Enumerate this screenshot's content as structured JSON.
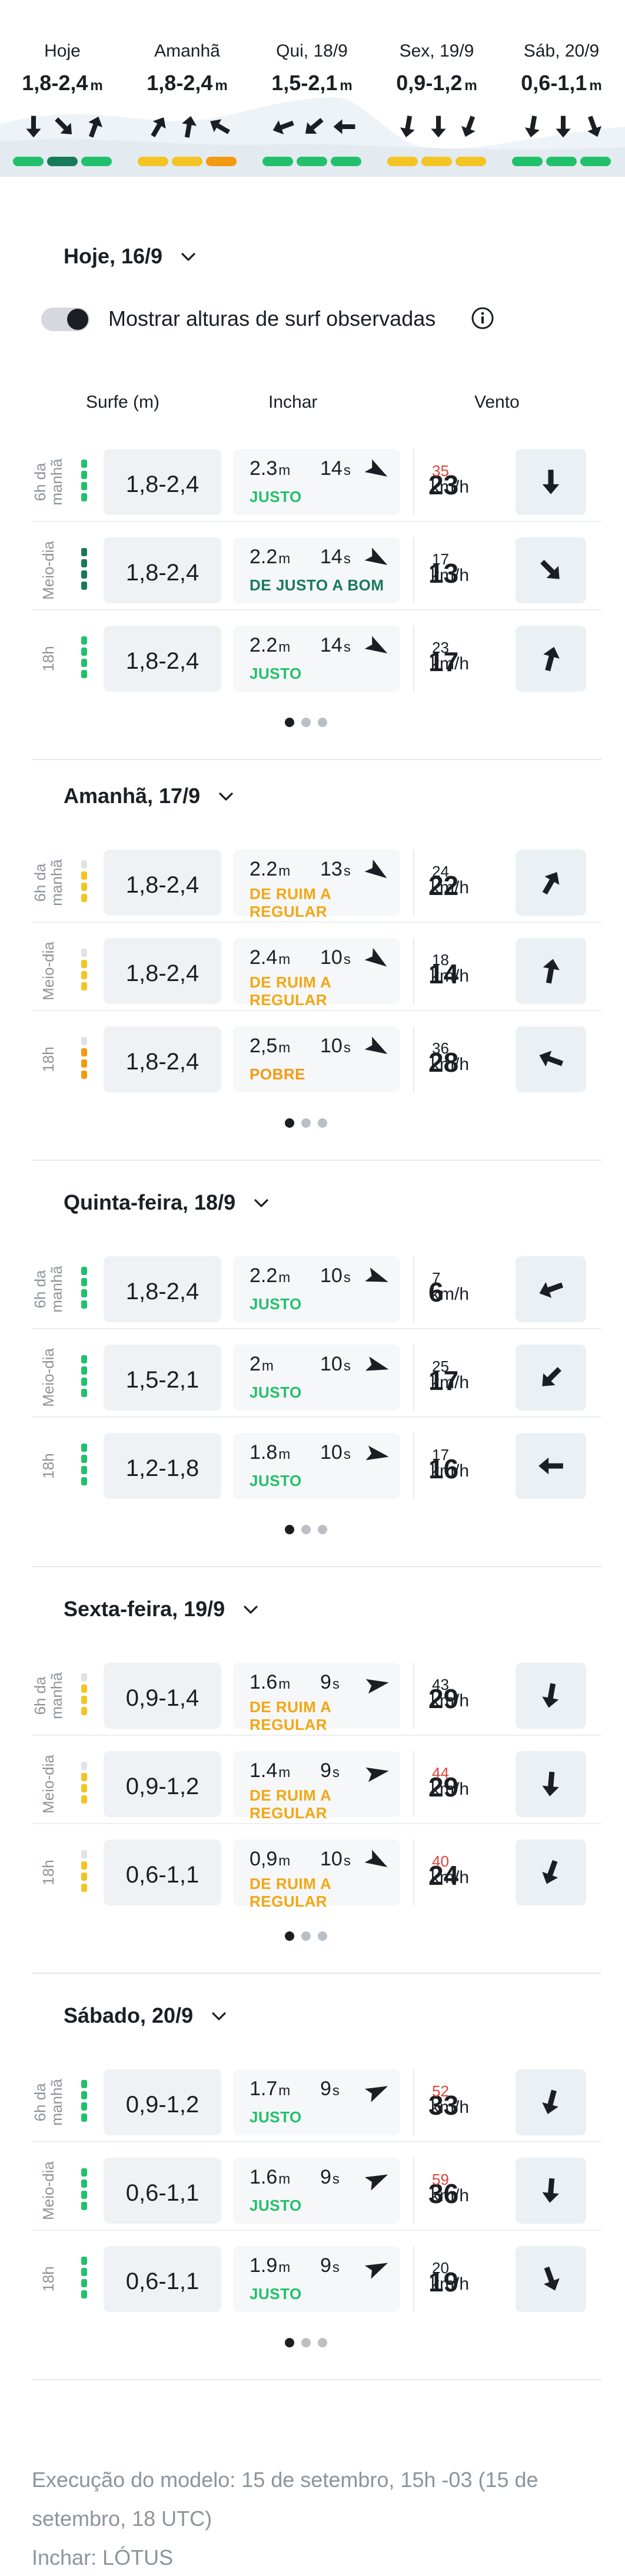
{
  "forecast_strip": [
    {
      "day": "Hoje",
      "height": "1,8-2,4",
      "unit": "m",
      "arrows": [
        180,
        135,
        20
      ],
      "bars": [
        "#21c16b",
        "#177a58",
        "#21c16b"
      ]
    },
    {
      "day": "Amanhã",
      "height": "1,8-2,4",
      "unit": "m",
      "arrows": [
        30,
        10,
        300
      ],
      "bars": [
        "#f3c423",
        "#f3c423",
        "#f39a12"
      ]
    },
    {
      "day": "Qui, 18/9",
      "height": "1,5-2,1",
      "unit": "m",
      "arrows": [
        250,
        230,
        270
      ],
      "bars": [
        "#21c16b",
        "#21c16b",
        "#21c16b"
      ]
    },
    {
      "day": "Sex, 19/9",
      "height": "0,9-1,2",
      "unit": "m",
      "arrows": [
        190,
        180,
        200
      ],
      "bars": [
        "#f3c423",
        "#f3c423",
        "#f3c423"
      ]
    },
    {
      "day": "Sáb, 20/9",
      "height": "0,6-1,1",
      "unit": "m",
      "arrows": [
        190,
        180,
        160
      ],
      "bars": [
        "#21c16b",
        "#21c16b",
        "#21c16b"
      ]
    }
  ],
  "toggle": {
    "label": "Mostrar alturas de surf observadas",
    "on": true
  },
  "headers": {
    "surf": "Surfe (m)",
    "swell": "Inchar",
    "wind": "Vento"
  },
  "wind_unit": "km/h",
  "colors": {
    "green": "#21c16b",
    "dark_green": "#177a58",
    "yellow": "#f3c423",
    "orange": "#f39a12",
    "gust_red": "#e0453a",
    "text": "#1b1f24"
  },
  "days": [
    {
      "title": "Hoje, 16/9",
      "rows": [
        {
          "time": "6h da manhã",
          "surf": "1,8-2,4",
          "level": 4,
          "lvl_color": "#21c16b",
          "swell_h": "2.3",
          "swell_u": "m",
          "period": "14",
          "period_u": "s",
          "swell_dir": 120,
          "rating": "JUSTO",
          "rating_color": "#21c16b",
          "wind": "23",
          "gust": "35",
          "gust_red": true,
          "wind_dir": 180
        },
        {
          "time": "Meio-dia",
          "surf": "1,8-2,4",
          "level": 4,
          "lvl_color": "#177a58",
          "swell_h": "2.2",
          "swell_u": "m",
          "period": "14",
          "period_u": "s",
          "swell_dir": 120,
          "rating": "DE JUSTO A BOM",
          "rating_color": "#177a58",
          "wind": "13",
          "gust": "17",
          "gust_red": false,
          "wind_dir": 135
        },
        {
          "time": "18h",
          "surf": "1,8-2,4",
          "level": 4,
          "lvl_color": "#21c16b",
          "swell_h": "2.2",
          "swell_u": "m",
          "period": "14",
          "period_u": "s",
          "swell_dir": 120,
          "rating": "JUSTO",
          "rating_color": "#21c16b",
          "wind": "17",
          "gust": "23",
          "gust_red": false,
          "wind_dir": 15
        }
      ]
    },
    {
      "title": "Amanhã, 17/9",
      "rows": [
        {
          "time": "6h da manhã",
          "surf": "1,8-2,4",
          "level": 3,
          "lvl_color": "#f3c423",
          "swell_h": "2.2",
          "swell_u": "m",
          "period": "13",
          "period_u": "s",
          "swell_dir": 125,
          "rating": "DE RUIM A REGULAR",
          "rating_color": "#f3a712",
          "wind": "22",
          "gust": "24",
          "gust_red": false,
          "wind_dir": 30
        },
        {
          "time": "Meio-dia",
          "surf": "1,8-2,4",
          "level": 3,
          "lvl_color": "#f3c423",
          "swell_h": "2.4",
          "swell_u": "m",
          "period": "10",
          "period_u": "s",
          "swell_dir": 125,
          "rating": "DE RUIM A REGULAR",
          "rating_color": "#f3a712",
          "wind": "14",
          "gust": "18",
          "gust_red": false,
          "wind_dir": 10
        },
        {
          "time": "18h",
          "surf": "1,8-2,4",
          "level": 3,
          "lvl_color": "#f39a12",
          "swell_h": "2,5",
          "swell_u": "m",
          "period": "10",
          "period_u": "s",
          "swell_dir": 120,
          "rating": "POBRE",
          "rating_color": "#f39a12",
          "wind": "28",
          "gust": "36",
          "gust_red": false,
          "wind_dir": 290
        }
      ]
    },
    {
      "title": "Quinta-feira, 18/9",
      "rows": [
        {
          "time": "6h da manhã",
          "surf": "1,8-2,4",
          "level": 4,
          "lvl_color": "#21c16b",
          "swell_h": "2.2",
          "swell_u": "m",
          "period": "10",
          "period_u": "s",
          "swell_dir": 110,
          "rating": "JUSTO",
          "rating_color": "#21c16b",
          "wind": "6",
          "gust": "7",
          "gust_red": false,
          "wind_dir": 250
        },
        {
          "time": "Meio-dia",
          "surf": "1,5-2,1",
          "level": 4,
          "lvl_color": "#21c16b",
          "swell_h": "2",
          "swell_u": "m",
          "period": "10",
          "period_u": "s",
          "swell_dir": 105,
          "rating": "JUSTO",
          "rating_color": "#21c16b",
          "wind": "17",
          "gust": "25",
          "gust_red": false,
          "wind_dir": 225
        },
        {
          "time": "18h",
          "surf": "1,2-1,8",
          "level": 4,
          "lvl_color": "#21c16b",
          "swell_h": "1.8",
          "swell_u": "m",
          "period": "10",
          "period_u": "s",
          "swell_dir": 100,
          "rating": "JUSTO",
          "rating_color": "#21c16b",
          "wind": "16",
          "gust": "17",
          "gust_red": false,
          "wind_dir": 270
        }
      ]
    },
    {
      "title": "Sexta-feira, 19/9",
      "rows": [
        {
          "time": "6h da manhã",
          "surf": "0,9-1,4",
          "level": 3,
          "lvl_color": "#f3c423",
          "swell_h": "1.6",
          "swell_u": "m",
          "period": "9",
          "period_u": "s",
          "swell_dir": 80,
          "rating": "DE RUIM A REGULAR",
          "rating_color": "#f3a712",
          "wind": "29",
          "gust": "43",
          "gust_red": false,
          "wind_dir": 190
        },
        {
          "time": "Meio-dia",
          "surf": "0,9-1,2",
          "level": 3,
          "lvl_color": "#f3c423",
          "swell_h": "1.4",
          "swell_u": "m",
          "period": "9",
          "period_u": "s",
          "swell_dir": 80,
          "rating": "DE RUIM A REGULAR",
          "rating_color": "#f3a712",
          "wind": "29",
          "gust": "44",
          "gust_red": true,
          "wind_dir": 185
        },
        {
          "time": "18h",
          "surf": "0,6-1,1",
          "level": 3,
          "lvl_color": "#f3c423",
          "swell_h": "0,9",
          "swell_u": "m",
          "period": "10",
          "period_u": "s",
          "swell_dir": 120,
          "rating": "DE RUIM A REGULAR",
          "rating_color": "#f3a712",
          "wind": "24",
          "gust": "40",
          "gust_red": true,
          "wind_dir": 200
        }
      ]
    },
    {
      "title": "Sábado, 20/9",
      "rows": [
        {
          "time": "6h da manhã",
          "surf": "0,9-1,2",
          "level": 4,
          "lvl_color": "#21c16b",
          "swell_h": "1.7",
          "swell_u": "m",
          "period": "9",
          "period_u": "s",
          "swell_dir": 65,
          "rating": "JUSTO",
          "rating_color": "#21c16b",
          "wind": "33",
          "gust": "52",
          "gust_red": true,
          "wind_dir": 195
        },
        {
          "time": "Meio-dia",
          "surf": "0,6-1,1",
          "level": 4,
          "lvl_color": "#21c16b",
          "swell_h": "1.6",
          "swell_u": "m",
          "period": "9",
          "period_u": "s",
          "swell_dir": 65,
          "rating": "JUSTO",
          "rating_color": "#21c16b",
          "wind": "36",
          "gust": "59",
          "gust_red": true,
          "wind_dir": 185
        },
        {
          "time": "18h",
          "surf": "0,6-1,1",
          "level": 4,
          "lvl_color": "#21c16b",
          "swell_h": "1.9",
          "swell_u": "m",
          "period": "9",
          "period_u": "s",
          "swell_dir": 65,
          "rating": "JUSTO",
          "rating_color": "#21c16b",
          "wind": "19",
          "gust": "20",
          "gust_red": false,
          "wind_dir": 160
        }
      ]
    }
  ],
  "footer": {
    "model_run": "Execução do modelo: 15 de setembro, 15h -03 (15 de setembro, 18 UTC)",
    "swell_source": "Inchar: LÓTUS"
  }
}
